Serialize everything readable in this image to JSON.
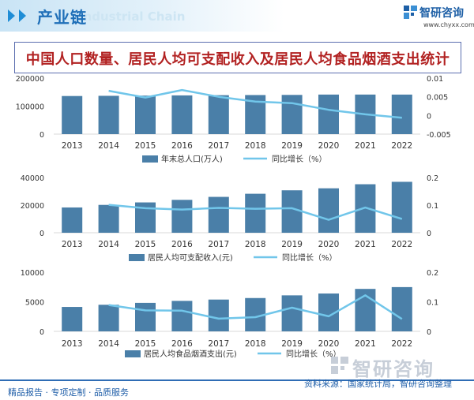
{
  "header": {
    "section_label": "产业链",
    "faint_en": "Industrial Chain",
    "brand_name": "智研咨询",
    "brand_url": "www.chyxx.com"
  },
  "title": "中国人口数量、居民人均可支配收入及居民人均食品烟酒支出统计",
  "footer": {
    "left": "精品报告 · 专项定制 · 品质服务",
    "source": "资料来源：国家统计局，智研咨询整理",
    "watermark": "智研咨询"
  },
  "colors": {
    "bar": "#4a7fa8",
    "line": "#71c6ea",
    "title": "#b22222",
    "brand": "#1d5fa6"
  },
  "chart_data": [
    {
      "type": "bar",
      "categories": [
        "2013",
        "2014",
        "2015",
        "2016",
        "2017",
        "2018",
        "2019",
        "2020",
        "2021",
        "2022"
      ],
      "series": [
        {
          "name": "年末总人口(万人)",
          "type": "bar",
          "axis": "left",
          "values": [
            136072,
            136782,
            137462,
            138271,
            139008,
            139538,
            140005,
            141212,
            141260,
            141175
          ]
        },
        {
          "name": "同比增长（%）",
          "type": "line",
          "axis": "right",
          "values": [
            null,
            0.0066,
            0.0048,
            0.0068,
            0.005,
            0.0037,
            0.0033,
            0.0015,
            0.0003,
            -0.0006
          ]
        }
      ],
      "y_left": {
        "ticks": [
          "0",
          "100000",
          "200000"
        ],
        "range": [
          0,
          200000
        ]
      },
      "y_right": {
        "ticks": [
          "-0.005",
          "0",
          "0.005",
          "0.01"
        ],
        "range": [
          -0.005,
          0.01
        ]
      }
    },
    {
      "type": "bar",
      "categories": [
        "2013",
        "2014",
        "2015",
        "2016",
        "2017",
        "2018",
        "2019",
        "2020",
        "2021",
        "2022"
      ],
      "series": [
        {
          "name": "居民人均可支配收入(元)",
          "type": "bar",
          "axis": "left",
          "values": [
            18311,
            20167,
            21966,
            23821,
            25974,
            28228,
            30733,
            32189,
            35128,
            36883
          ]
        },
        {
          "name": "同比增长（%）",
          "type": "line",
          "axis": "right",
          "values": [
            null,
            0.101,
            0.089,
            0.084,
            0.09,
            0.087,
            0.089,
            0.047,
            0.091,
            0.05
          ]
        }
      ],
      "y_left": {
        "ticks": [
          "0",
          "20000",
          "40000"
        ],
        "range": [
          0,
          40000
        ]
      },
      "y_right": {
        "ticks": [
          "0",
          "0.1",
          "0.2"
        ],
        "range": [
          0,
          0.2
        ]
      }
    },
    {
      "type": "bar",
      "categories": [
        "2013",
        "2014",
        "2015",
        "2016",
        "2017",
        "2018",
        "2019",
        "2020",
        "2021",
        "2022"
      ],
      "series": [
        {
          "name": "居民人均食品烟酒支出(元)",
          "type": "bar",
          "axis": "left",
          "values": [
            4127,
            4494,
            4814,
            5151,
            5374,
            5631,
            6084,
            6397,
            7178,
            7481
          ]
        },
        {
          "name": "同比增长（%）",
          "type": "line",
          "axis": "right",
          "values": [
            null,
            0.089,
            0.071,
            0.07,
            0.043,
            0.048,
            0.08,
            0.051,
            0.122,
            0.042
          ]
        }
      ],
      "y_left": {
        "ticks": [
          "0",
          "5000",
          "10000"
        ],
        "range": [
          0,
          10000
        ]
      },
      "y_right": {
        "ticks": [
          "0",
          "0.1",
          "0.2"
        ],
        "range": [
          0,
          0.2
        ]
      }
    }
  ]
}
